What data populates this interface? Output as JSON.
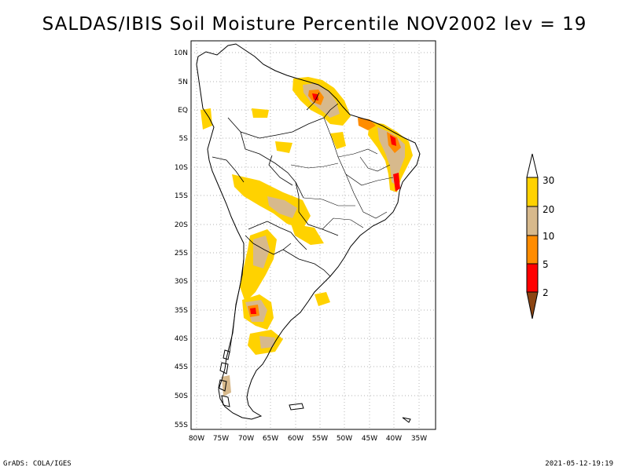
{
  "title": "SALDAS/IBIS Soil Moisture Percentile NOV2002 lev = 19",
  "credit": "GrADS: COLA/IGES",
  "timestamp": "2021-05-12-19:19",
  "lat_labels": [
    "10N",
    "5N",
    "EQ",
    "5S",
    "10S",
    "15S",
    "20S",
    "25S",
    "30S",
    "35S",
    "40S",
    "45S",
    "50S",
    "55S"
  ],
  "lon_labels": [
    "80W",
    "75W",
    "70W",
    "65W",
    "60W",
    "55W",
    "50W",
    "45W",
    "40W",
    "35W"
  ],
  "legend": {
    "labels": [
      "30",
      "20",
      "10",
      "5",
      "2"
    ],
    "colors": {
      "above30": "#ffffff",
      "c20_30": "#ffd200",
      "c10_20": "#d7b98c",
      "c5_10": "#ff8c00",
      "c2_5": "#ff0000",
      "below2": "#8b4513"
    }
  }
}
